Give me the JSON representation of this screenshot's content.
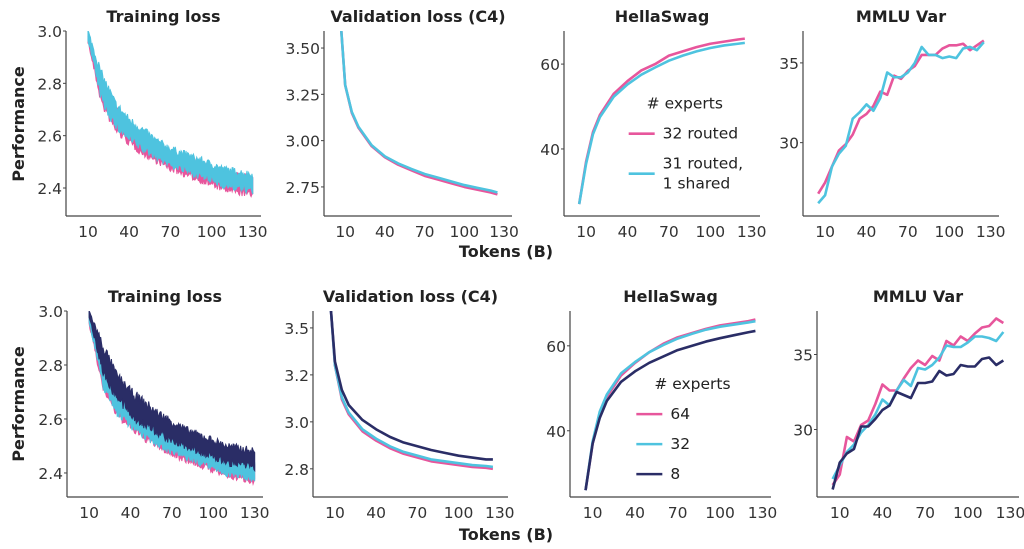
{
  "colors": {
    "pink": "#e7569c",
    "cyan": "#4ec3df",
    "navy": "#2a2d66"
  },
  "chart_data": [
    {
      "type": "area",
      "row": 1,
      "title": "Training loss",
      "ylabel": "Performance",
      "xlabel": "",
      "xlim": [
        -6,
        136
      ],
      "ylim": [
        2.293,
        3.0
      ],
      "xticks": [
        10,
        40,
        70,
        100,
        130
      ],
      "xtick_labels": [
        "10",
        "40",
        "70",
        "100",
        "130"
      ],
      "yticks": [
        2.4,
        2.6,
        2.8,
        3.0
      ],
      "ytick_labels": [
        "2.4",
        "2.6",
        "2.8",
        "3.0"
      ],
      "x": [
        10,
        20,
        30,
        40,
        50,
        60,
        70,
        80,
        90,
        100,
        110,
        120,
        130
      ],
      "series": [
        {
          "name": "32 routed",
          "color": "pink",
          "low": [
            2.96,
            2.725,
            2.625,
            2.575,
            2.535,
            2.505,
            2.475,
            2.455,
            2.435,
            2.415,
            2.395,
            2.385,
            2.375
          ],
          "high": [
            2.99,
            2.8,
            2.7,
            2.64,
            2.6,
            2.56,
            2.53,
            2.51,
            2.49,
            2.47,
            2.455,
            2.445,
            2.435
          ]
        },
        {
          "name": "31 routed, 1 shared",
          "color": "cyan",
          "low": [
            2.97,
            2.74,
            2.64,
            2.59,
            2.55,
            2.52,
            2.49,
            2.47,
            2.45,
            2.43,
            2.41,
            2.4,
            2.39
          ],
          "high": [
            3.0,
            2.83,
            2.72,
            2.66,
            2.62,
            2.58,
            2.55,
            2.53,
            2.51,
            2.49,
            2.47,
            2.46,
            2.45
          ]
        }
      ]
    },
    {
      "type": "line",
      "row": 1,
      "title": "Validation loss (C4)",
      "xlim": [
        -6,
        136
      ],
      "ylim": [
        2.593,
        3.592
      ],
      "xticks": [
        10,
        40,
        70,
        100,
        130
      ],
      "xtick_labels": [
        "10",
        "40",
        "70",
        "100",
        "130"
      ],
      "yticks": [
        2.75,
        3.0,
        3.25,
        3.5
      ],
      "ytick_labels": [
        "2.75",
        "3.00",
        "3.25",
        "3.50"
      ],
      "x": [
        7,
        10,
        15,
        20,
        30,
        40,
        50,
        60,
        70,
        80,
        90,
        100,
        110,
        120,
        125
      ],
      "series": [
        {
          "name": "32 routed",
          "color": "pink",
          "values": [
            3.6,
            3.3,
            3.15,
            3.07,
            2.97,
            2.91,
            2.87,
            2.84,
            2.81,
            2.79,
            2.77,
            2.75,
            2.735,
            2.72,
            2.71
          ]
        },
        {
          "name": "31 routed, 1 shared",
          "color": "cyan",
          "values": [
            3.6,
            3.3,
            3.155,
            3.075,
            2.975,
            2.915,
            2.877,
            2.847,
            2.82,
            2.8,
            2.78,
            2.76,
            2.745,
            2.73,
            2.72
          ]
        }
      ]
    },
    {
      "type": "line",
      "row": 1,
      "title": "HellaSwag",
      "xlim": [
        -6,
        136
      ],
      "ylim": [
        24.2,
        67.8
      ],
      "xticks": [
        10,
        40,
        70,
        100,
        130
      ],
      "xtick_labels": [
        "10",
        "40",
        "70",
        "100",
        "130"
      ],
      "yticks": [
        40,
        60
      ],
      "ytick_labels": [
        "40",
        "60"
      ],
      "x": [
        5,
        10,
        15,
        20,
        30,
        40,
        50,
        60,
        70,
        80,
        90,
        100,
        110,
        120,
        125
      ],
      "series": [
        {
          "name": "32 routed",
          "color": "pink",
          "values": [
            27,
            37,
            44,
            48,
            53,
            56,
            58.5,
            60,
            62,
            63,
            64,
            64.8,
            65.3,
            65.8,
            66
          ]
        },
        {
          "name": "31 routed, 1 shared",
          "color": "cyan",
          "values": [
            27,
            36.5,
            43.5,
            47.5,
            52.3,
            55.2,
            57.5,
            59.2,
            60.8,
            62,
            63,
            63.8,
            64.4,
            64.8,
            65
          ]
        }
      ],
      "legend": {
        "title": "# experts",
        "placement": "center-right",
        "entries": [
          "32 routed",
          "31 routed,\n1 shared"
        ]
      }
    },
    {
      "type": "line",
      "row": 1,
      "title": "MMLU Var",
      "xlim": [
        -6,
        136
      ],
      "ylim": [
        25.4,
        37.0
      ],
      "xticks": [
        10,
        40,
        70,
        100,
        130
      ],
      "xtick_labels": [
        "10",
        "40",
        "70",
        "100",
        "130"
      ],
      "yticks": [
        30,
        35
      ],
      "ytick_labels": [
        "30",
        "35"
      ],
      "x": [
        5,
        10,
        15,
        20,
        25,
        30,
        35,
        40,
        45,
        50,
        55,
        60,
        65,
        70,
        75,
        80,
        85,
        90,
        95,
        100,
        105,
        110,
        115,
        120,
        125
      ],
      "series": [
        {
          "name": "32 routed",
          "color": "pink",
          "values": [
            26.8,
            27.5,
            28.5,
            29.5,
            29.9,
            30.5,
            31.5,
            31.8,
            32.3,
            33.2,
            33.0,
            34.2,
            34.0,
            34.5,
            34.8,
            35.5,
            35.5,
            35.5,
            35.9,
            36.1,
            36.1,
            36.2,
            35.8,
            36.1,
            36.4
          ]
        },
        {
          "name": "31 routed, 1 shared",
          "color": "cyan",
          "values": [
            26.2,
            26.7,
            28.5,
            29.3,
            29.8,
            31.5,
            31.9,
            32.4,
            32.0,
            32.8,
            34.4,
            34.1,
            34.1,
            34.4,
            35.0,
            36.0,
            35.5,
            35.5,
            35.3,
            35.4,
            35.3,
            35.9,
            36.0,
            35.8,
            36.3
          ]
        }
      ]
    },
    {
      "type": "area",
      "row": 2,
      "title": "Training loss",
      "ylabel": "Performance",
      "xlim": [
        -6,
        136
      ],
      "ylim": [
        2.311,
        3.0
      ],
      "xticks": [
        10,
        40,
        70,
        100,
        130
      ],
      "xtick_labels": [
        "10",
        "40",
        "70",
        "100",
        "130"
      ],
      "yticks": [
        2.4,
        2.6,
        2.8,
        3.0
      ],
      "ytick_labels": [
        "2.4",
        "2.6",
        "2.8",
        "3.0"
      ],
      "x": [
        10,
        20,
        30,
        40,
        50,
        60,
        70,
        80,
        90,
        100,
        110,
        120,
        130
      ],
      "series": [
        {
          "name": "64",
          "color": "pink",
          "low": [
            2.95,
            2.72,
            2.62,
            2.57,
            2.53,
            2.5,
            2.47,
            2.45,
            2.43,
            2.41,
            2.39,
            2.38,
            2.37
          ],
          "high": [
            2.98,
            2.79,
            2.69,
            2.63,
            2.59,
            2.55,
            2.52,
            2.5,
            2.48,
            2.46,
            2.44,
            2.43,
            2.42
          ]
        },
        {
          "name": "32",
          "color": "cyan",
          "low": [
            2.96,
            2.73,
            2.63,
            2.58,
            2.54,
            2.51,
            2.48,
            2.46,
            2.44,
            2.42,
            2.4,
            2.39,
            2.38
          ],
          "high": [
            2.99,
            2.81,
            2.71,
            2.65,
            2.61,
            2.57,
            2.54,
            2.52,
            2.5,
            2.48,
            2.46,
            2.45,
            2.44
          ]
        },
        {
          "name": "8",
          "color": "navy",
          "low": [
            2.98,
            2.78,
            2.68,
            2.62,
            2.58,
            2.55,
            2.52,
            2.5,
            2.48,
            2.46,
            2.44,
            2.43,
            2.42
          ],
          "high": [
            3.0,
            2.87,
            2.76,
            2.7,
            2.66,
            2.62,
            2.59,
            2.56,
            2.54,
            2.52,
            2.5,
            2.49,
            2.48
          ]
        }
      ]
    },
    {
      "type": "line",
      "row": 2,
      "title": "Validation loss (C4)",
      "xlabel": "Tokens (B)",
      "xlim": [
        -6,
        136
      ],
      "ylim": [
        2.6,
        3.59
      ],
      "xticks": [
        10,
        40,
        70,
        100,
        130
      ],
      "xtick_labels": [
        "10",
        "40",
        "70",
        "100",
        "130"
      ],
      "yticks": [
        2.75,
        3.0,
        3.25,
        3.5
      ],
      "ytick_labels": [
        "2.8",
        "3.0",
        "3.2",
        "3.5"
      ],
      "x": [
        7,
        10,
        15,
        20,
        30,
        40,
        50,
        60,
        70,
        80,
        90,
        100,
        110,
        120,
        125
      ],
      "series": [
        {
          "name": "64",
          "color": "pink",
          "values": [
            3.6,
            3.3,
            3.12,
            3.04,
            2.95,
            2.9,
            2.86,
            2.83,
            2.81,
            2.79,
            2.78,
            2.77,
            2.76,
            2.755,
            2.75
          ]
        },
        {
          "name": "32",
          "color": "cyan",
          "values": [
            3.6,
            3.3,
            3.13,
            3.05,
            2.96,
            2.91,
            2.87,
            2.84,
            2.82,
            2.8,
            2.79,
            2.78,
            2.77,
            2.765,
            2.76
          ]
        },
        {
          "name": "8",
          "color": "navy",
          "values": [
            3.6,
            3.32,
            3.17,
            3.09,
            3.01,
            2.96,
            2.92,
            2.89,
            2.87,
            2.85,
            2.835,
            2.82,
            2.81,
            2.8,
            2.8
          ]
        }
      ]
    },
    {
      "type": "line",
      "row": 2,
      "title": "HellaSwag",
      "xlim": [
        -6,
        136
      ],
      "ylim": [
        24.4,
        68.2
      ],
      "xticks": [
        10,
        40,
        70,
        100,
        130
      ],
      "xtick_labels": [
        "10",
        "40",
        "70",
        "100",
        "130"
      ],
      "yticks": [
        40,
        60
      ],
      "ytick_labels": [
        "40",
        "60"
      ],
      "x": [
        5,
        10,
        15,
        20,
        30,
        40,
        50,
        60,
        70,
        80,
        90,
        100,
        110,
        120,
        125
      ],
      "series": [
        {
          "name": "64",
          "color": "pink",
          "values": [
            26,
            37,
            44,
            48,
            53,
            56,
            58.5,
            60.5,
            62,
            63,
            64,
            64.8,
            65.3,
            65.8,
            66.2
          ]
        },
        {
          "name": "32",
          "color": "cyan",
          "values": [
            26,
            37.5,
            44.5,
            48.5,
            53.5,
            56.2,
            58.5,
            60.2,
            61.7,
            62.8,
            63.8,
            64.5,
            65,
            65.5,
            65.8
          ]
        },
        {
          "name": "8",
          "color": "navy",
          "values": [
            26,
            37,
            43,
            47,
            51.5,
            54,
            56,
            57.5,
            59,
            60,
            61,
            61.8,
            62.5,
            63.2,
            63.5
          ]
        }
      ],
      "legend": {
        "title": "# experts",
        "placement": "center-right",
        "entries": [
          "64",
          "32",
          "8"
        ]
      }
    },
    {
      "type": "line",
      "row": 2,
      "title": "MMLU Var",
      "xlim": [
        -6,
        136
      ],
      "ylim": [
        25.5,
        37.9
      ],
      "xticks": [
        10,
        40,
        70,
        100,
        130
      ],
      "xtick_labels": [
        "10",
        "40",
        "70",
        "100",
        "130"
      ],
      "yticks": [
        30,
        35
      ],
      "ytick_labels": [
        "30",
        "35"
      ],
      "x": [
        5,
        10,
        15,
        20,
        25,
        30,
        35,
        40,
        45,
        50,
        55,
        60,
        65,
        70,
        75,
        80,
        85,
        90,
        95,
        100,
        105,
        110,
        115,
        120,
        125
      ],
      "series": [
        {
          "name": "64",
          "color": "pink",
          "values": [
            26.3,
            27.0,
            29.5,
            29.2,
            30.3,
            30.6,
            31.7,
            33.0,
            32.6,
            32.6,
            33.4,
            34.1,
            34.6,
            34.3,
            34.9,
            34.6,
            35.9,
            35.6,
            36.2,
            35.9,
            36.4,
            36.8,
            36.9,
            37.4,
            37.1
          ]
        },
        {
          "name": "32",
          "color": "cyan",
          "values": [
            26.7,
            27.6,
            28.5,
            29.0,
            29.8,
            30.3,
            31.0,
            32.0,
            31.6,
            32.6,
            33.3,
            32.9,
            34.1,
            34.0,
            34.3,
            34.8,
            35.6,
            35.5,
            35.5,
            35.8,
            36.2,
            36.2,
            36.1,
            35.9,
            36.5
          ]
        },
        {
          "name": "8",
          "color": "navy",
          "values": [
            26.0,
            27.8,
            28.4,
            28.7,
            30.2,
            30.2,
            30.7,
            31.3,
            31.6,
            32.5,
            32.3,
            32.1,
            33.1,
            33.1,
            33.2,
            33.9,
            33.6,
            33.7,
            34.3,
            34.2,
            34.2,
            34.7,
            34.8,
            34.3,
            34.6
          ]
        }
      ]
    }
  ],
  "shared_xlabel_row1": "Tokens (B)"
}
